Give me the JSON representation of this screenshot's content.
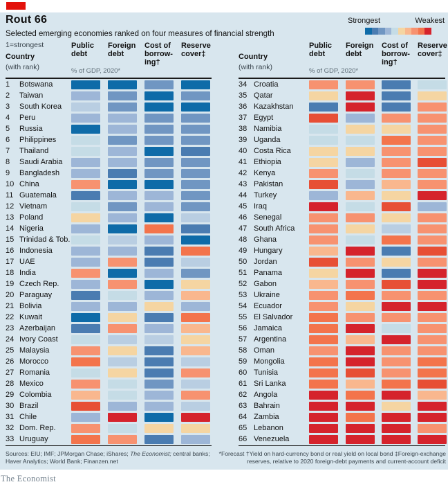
{
  "header": {
    "title": "Rout 66",
    "subtitle": "Selected emerging economies ranked on four measures of financial strength",
    "note": "1=strongest",
    "tab_color": "#e3120b"
  },
  "legend": {
    "strongest_label": "Strongest",
    "weakest_label": "Weakest",
    "scale": [
      "b1",
      "b2",
      "b3",
      "b4",
      "b6",
      "o1",
      "o2",
      "o3",
      "o4",
      "r2"
    ]
  },
  "palette": {
    "b1": "#0e6ba8",
    "b2": "#4a7cb1",
    "b3": "#7096c2",
    "b4": "#9db6d7",
    "b5": "#b9cee2",
    "b6": "#c5dce6",
    "o1": "#f5d5a2",
    "o2": "#f9b78e",
    "o3": "#f79270",
    "o4": "#f3744c",
    "r1": "#e74f35",
    "r2": "#d5232c"
  },
  "columns": {
    "country": "Country",
    "with_rank": "(with rank)",
    "gdp_note": "% of GDP, 2020*",
    "c1": "Public\ndebt",
    "c2": "Foreign\ndebt",
    "c3": "Cost of\nborrow-\ning†",
    "c4": "Reserve\ncover‡"
  },
  "chart_data": {
    "type": "heatmap",
    "title": "Rout 66",
    "subtitle": "Selected emerging economies ranked on four measures of financial strength",
    "scale_note": "1=strongest; color buckets ordered strongest(b1 dark blue) to weakest(r2 red)",
    "columns": [
      "Public debt",
      "Foreign debt",
      "Cost of borrowing",
      "Reserve cover"
    ],
    "strength_order": [
      "b1",
      "b2",
      "b3",
      "b4",
      "b5",
      "b6",
      "o1",
      "o2",
      "o3",
      "o4",
      "r1",
      "r2"
    ],
    "rows": [
      {
        "rank": 1,
        "country": "Botswana",
        "cells": [
          "b1",
          "b1",
          "b3",
          "b1"
        ]
      },
      {
        "rank": 2,
        "country": "Taiwan",
        "cells": [
          "b4",
          "b3",
          "b1",
          "b3"
        ]
      },
      {
        "rank": 3,
        "country": "South Korea",
        "cells": [
          "b5",
          "b3",
          "b1",
          "b1"
        ]
      },
      {
        "rank": 4,
        "country": "Peru",
        "cells": [
          "b4",
          "b4",
          "b3",
          "b3"
        ]
      },
      {
        "rank": 5,
        "country": "Russia",
        "cells": [
          "b1",
          "b4",
          "b3",
          "b3"
        ]
      },
      {
        "rank": 6,
        "country": "Philippines",
        "cells": [
          "b6",
          "b3",
          "b3",
          "b3"
        ]
      },
      {
        "rank": 7,
        "country": "Thailand",
        "cells": [
          "b6",
          "b4",
          "b1",
          "b2"
        ]
      },
      {
        "rank": 8,
        "country": "Saudi Arabia",
        "cells": [
          "b4",
          "b4",
          "b3",
          "b3"
        ]
      },
      {
        "rank": 9,
        "country": "Bangladesh",
        "cells": [
          "b4",
          "b2",
          "b3",
          "b3"
        ]
      },
      {
        "rank": 10,
        "country": "China",
        "cells": [
          "o3",
          "b1",
          "b1",
          "b3"
        ]
      },
      {
        "rank": 11,
        "country": "Guatemala",
        "cells": [
          "b2",
          "b4",
          "b4",
          "b3"
        ]
      },
      {
        "rank": 12,
        "country": "Vietnam",
        "cells": [
          "b6",
          "b3",
          "b4",
          "b3"
        ]
      },
      {
        "rank": 13,
        "country": "Poland",
        "cells": [
          "o1",
          "b4",
          "b1",
          "b5"
        ]
      },
      {
        "rank": 14,
        "country": "Nigeria",
        "cells": [
          "b4",
          "b1",
          "o4",
          "b2"
        ]
      },
      {
        "rank": 15,
        "country": "Trinidad & Tob.",
        "cells": [
          "b6",
          "b5",
          "b4",
          "b1"
        ]
      },
      {
        "rank": 16,
        "country": "Indonesia",
        "cells": [
          "b4",
          "b4",
          "b2",
          "o4"
        ]
      },
      {
        "rank": 17,
        "country": "UAE",
        "cells": [
          "b4",
          "o3",
          "b2",
          "b5"
        ]
      },
      {
        "rank": 18,
        "country": "India",
        "cells": [
          "o3",
          "b1",
          "b4",
          "b3"
        ]
      },
      {
        "rank": 19,
        "country": "Czech Rep.",
        "cells": [
          "b4",
          "o3",
          "b1",
          "o1"
        ]
      },
      {
        "rank": 20,
        "country": "Paraguay",
        "cells": [
          "b2",
          "b6",
          "b4",
          "o2"
        ]
      },
      {
        "rank": 21,
        "country": "Bolivia",
        "cells": [
          "b4",
          "b4",
          "o1",
          "b4"
        ]
      },
      {
        "rank": 22,
        "country": "Kuwait",
        "cells": [
          "b1",
          "o1",
          "b2",
          "o4"
        ]
      },
      {
        "rank": 23,
        "country": "Azerbaijan",
        "cells": [
          "b2",
          "o3",
          "b4",
          "o2"
        ]
      },
      {
        "rank": 24,
        "country": "Ivory Coast",
        "cells": [
          "b6",
          "b5",
          "b5",
          "o1"
        ]
      },
      {
        "rank": 25,
        "country": "Malaysia",
        "cells": [
          "o3",
          "o1",
          "b2",
          "o2"
        ]
      },
      {
        "rank": 26,
        "country": "Morocco",
        "cells": [
          "o4",
          "b5",
          "b2",
          "b5"
        ]
      },
      {
        "rank": 27,
        "country": "Romania",
        "cells": [
          "b6",
          "o1",
          "b2",
          "o3"
        ]
      },
      {
        "rank": 28,
        "country": "Mexico",
        "cells": [
          "o3",
          "b6",
          "b3",
          "b5"
        ]
      },
      {
        "rank": 29,
        "country": "Colombia",
        "cells": [
          "o2",
          "b6",
          "b4",
          "o3"
        ]
      },
      {
        "rank": 30,
        "country": "Brazil",
        "cells": [
          "r1",
          "b4",
          "b4",
          "b5"
        ]
      },
      {
        "rank": 31,
        "country": "Chile",
        "cells": [
          "b4",
          "r2",
          "b1",
          "r2"
        ]
      },
      {
        "rank": 32,
        "country": "Dom. Rep.",
        "cells": [
          "o3",
          "b6",
          "o1",
          "o1"
        ]
      },
      {
        "rank": 33,
        "country": "Uruguay",
        "cells": [
          "o4",
          "o3",
          "b2",
          "b4"
        ]
      },
      {
        "rank": 34,
        "country": "Croatia",
        "cells": [
          "o3",
          "o3",
          "b2",
          "b6"
        ]
      },
      {
        "rank": 35,
        "country": "Qatar",
        "cells": [
          "o1",
          "r2",
          "b2",
          "o1"
        ]
      },
      {
        "rank": 36,
        "country": "Kazakhstan",
        "cells": [
          "b2",
          "r2",
          "b2",
          "o3"
        ]
      },
      {
        "rank": 37,
        "country": "Egypt",
        "cells": [
          "r1",
          "b4",
          "o3",
          "o3"
        ]
      },
      {
        "rank": 38,
        "country": "Namibia",
        "cells": [
          "b6",
          "o1",
          "o1",
          "o3"
        ]
      },
      {
        "rank": 39,
        "country": "Uganda",
        "cells": [
          "b6",
          "b6",
          "o4",
          "o3"
        ]
      },
      {
        "rank": 40,
        "country": "Costa Rica",
        "cells": [
          "o1",
          "o1",
          "o3",
          "o3"
        ]
      },
      {
        "rank": 41,
        "country": "Ethiopia",
        "cells": [
          "o1",
          "b4",
          "o3",
          "r1"
        ]
      },
      {
        "rank": 42,
        "country": "Kenya",
        "cells": [
          "o3",
          "b6",
          "o3",
          "o3"
        ]
      },
      {
        "rank": 43,
        "country": "Pakistan",
        "cells": [
          "r1",
          "b4",
          "o2",
          "o3"
        ]
      },
      {
        "rank": 44,
        "country": "Turkey",
        "cells": [
          "b4",
          "o2",
          "o1",
          "r2"
        ]
      },
      {
        "rank": 45,
        "country": "Iraq",
        "cells": [
          "r2",
          "b6",
          "r1",
          "b4"
        ]
      },
      {
        "rank": 46,
        "country": "Senegal",
        "cells": [
          "o3",
          "o3",
          "o1",
          "o3"
        ]
      },
      {
        "rank": 47,
        "country": "South Africa",
        "cells": [
          "o3",
          "o1",
          "b5",
          "o3"
        ]
      },
      {
        "rank": 48,
        "country": "Ghana",
        "cells": [
          "o3",
          "b6",
          "o4",
          "o3"
        ]
      },
      {
        "rank": 49,
        "country": "Hungary",
        "cells": [
          "o2",
          "r2",
          "b2",
          "r1"
        ]
      },
      {
        "rank": 50,
        "country": "Jordan",
        "cells": [
          "r1",
          "o3",
          "o1",
          "o3"
        ]
      },
      {
        "rank": 51,
        "country": "Panama",
        "cells": [
          "o1",
          "r2",
          "b2",
          "r2"
        ]
      },
      {
        "rank": 52,
        "country": "Gabon",
        "cells": [
          "o2",
          "o3",
          "r1",
          "r2"
        ]
      },
      {
        "rank": 53,
        "country": "Ukraine",
        "cells": [
          "o3",
          "o4",
          "o3",
          "o3"
        ]
      },
      {
        "rank": 54,
        "country": "Ecuador",
        "cells": [
          "o3",
          "o1",
          "r2",
          "r2"
        ]
      },
      {
        "rank": 55,
        "country": "El Salvador",
        "cells": [
          "o4",
          "o3",
          "o3",
          "o3"
        ]
      },
      {
        "rank": 56,
        "country": "Jamaica",
        "cells": [
          "o4",
          "r2",
          "b6",
          "o3"
        ]
      },
      {
        "rank": 57,
        "country": "Argentina",
        "cells": [
          "o4",
          "o2",
          "r2",
          "o3"
        ]
      },
      {
        "rank": 58,
        "country": "Oman",
        "cells": [
          "o3",
          "r2",
          "o3",
          "o3"
        ]
      },
      {
        "rank": 59,
        "country": "Mongolia",
        "cells": [
          "o4",
          "r2",
          "o3",
          "o4"
        ]
      },
      {
        "rank": 60,
        "country": "Tunisia",
        "cells": [
          "o4",
          "r1",
          "o3",
          "o4"
        ]
      },
      {
        "rank": 61,
        "country": "Sri Lanka",
        "cells": [
          "o4",
          "o2",
          "o4",
          "r1"
        ]
      },
      {
        "rank": 62,
        "country": "Angola",
        "cells": [
          "r2",
          "o4",
          "r2",
          "o2"
        ]
      },
      {
        "rank": 63,
        "country": "Bahrain",
        "cells": [
          "r2",
          "r2",
          "o1",
          "r2"
        ]
      },
      {
        "rank": 64,
        "country": "Zambia",
        "cells": [
          "r2",
          "o4",
          "r2",
          "r2"
        ]
      },
      {
        "rank": 65,
        "country": "Lebanon",
        "cells": [
          "r2",
          "r2",
          "r2",
          "o3"
        ]
      },
      {
        "rank": 66,
        "country": "Venezuela",
        "cells": [
          "r2",
          "r2",
          "r2",
          "r2"
        ]
      }
    ]
  },
  "footer": {
    "sources_1": "Sources: EIU; IMF; JPMorgan Chase; iShares; ",
    "sources_italic": "The Economist;",
    "sources_2": " central banks; Haver Analytics; World Bank; Finanzen.net",
    "footnotes": "*Forecast   †Yield on hard-currency bond or real yield on local bond   ‡Foreign-exchange reserves, relative to 2020 foreign-debt payments and current-account deficit",
    "brand": "The Economist"
  }
}
